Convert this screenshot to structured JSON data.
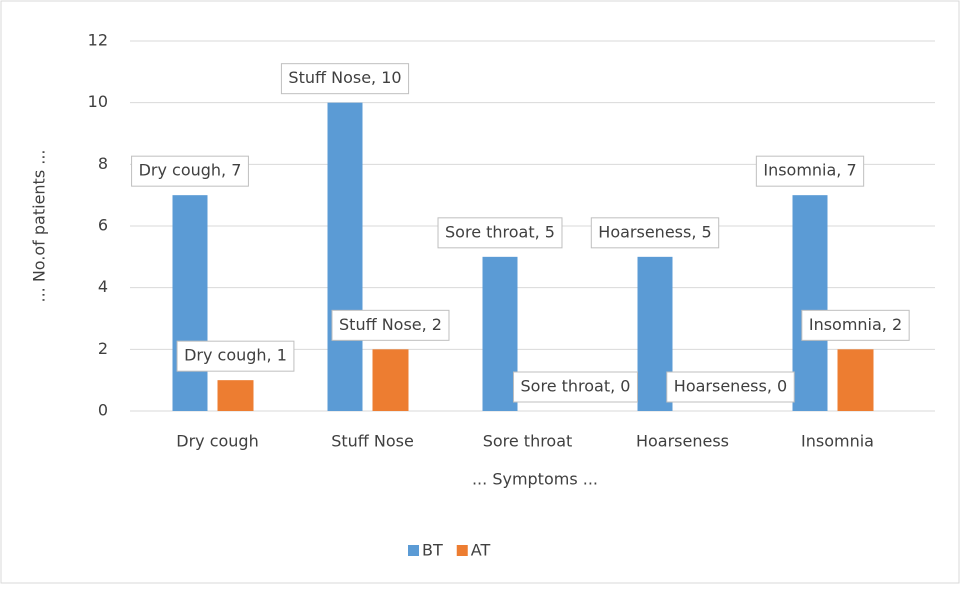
{
  "chart_data": {
    "type": "bar",
    "categories": [
      "Dry cough",
      "Stuff Nose",
      "Sore throat",
      "Hoarseness",
      "Insomnia"
    ],
    "series": [
      {
        "name": "BT",
        "color": "#5b9bd5",
        "values": [
          7,
          10,
          5,
          5,
          7
        ],
        "value_labels": [
          "Dry cough, 7",
          "Stuff Nose, 10",
          "Sore throat, 5",
          "Hoarseness, 5",
          "Insomnia, 7"
        ]
      },
      {
        "name": "AT",
        "color": "#ed7d31",
        "values": [
          1,
          2,
          0,
          0,
          2
        ],
        "value_labels": [
          "Dry cough, 1",
          "Stuff Nose, 2",
          "Sore throat, 0",
          "Hoarseness, 0",
          "Insomnia, 2"
        ]
      }
    ],
    "x_label": "... Symptoms ...",
    "y_label": "... No.of patients ...",
    "ylim": [
      0,
      12
    ],
    "yticks": [
      0,
      2,
      4,
      6,
      8,
      10,
      12
    ],
    "grid": true,
    "legend": "bottom"
  }
}
